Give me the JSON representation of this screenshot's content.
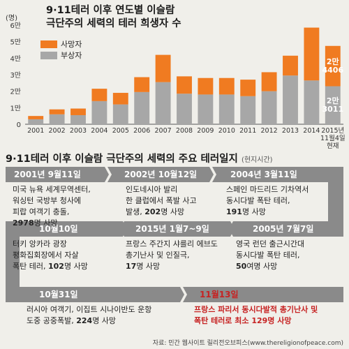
{
  "chart_title_line1": "9·11테러 이후 연도별 이슬람",
  "chart_title_line2": "극단주의 세력의 테러 희생자 수",
  "unit_label": "(명)",
  "legend": {
    "deaths": "사망자",
    "injuries": "부상자"
  },
  "colors": {
    "deaths": "#f07b21",
    "injuries": "#a7a7a7",
    "timeline": "#8a8a8a",
    "highlight": "#c62222"
  },
  "chart_data": {
    "type": "bar",
    "stacked": true,
    "categories": [
      "2001",
      "2002",
      "2003",
      "2004",
      "2005",
      "2006",
      "2007",
      "2008",
      "2009",
      "2010",
      "2011",
      "2012",
      "2013",
      "2014",
      "2015년\n11월4일\n현재"
    ],
    "series": [
      {
        "name": "부상자",
        "values": [
          3000,
          6000,
          5500,
          14000,
          12000,
          19500,
          25500,
          18500,
          18000,
          18000,
          17000,
          20000,
          29500,
          26500,
          23011
        ]
      },
      {
        "name": "사망자",
        "values": [
          2000,
          3000,
          4000,
          7500,
          7000,
          9000,
          16500,
          10500,
          10000,
          10000,
          10000,
          11500,
          12000,
          32000,
          24406
        ]
      }
    ],
    "yticks": [
      "0",
      "1만",
      "2만",
      "3만",
      "4만",
      "5만",
      "6만"
    ],
    "ylim": [
      0,
      60000
    ],
    "annotations": [
      {
        "top": "2만\n4406",
        "bottom": "2만\n3011"
      }
    ]
  },
  "timeline": {
    "title": "9·11테러 이후 이슬람 극단주의 세력의 주요 테러일지",
    "subtitle": "(현지시간)",
    "events": [
      {
        "date": "2001년 9월11일",
        "text": "미국 뉴욕 세계무역센터,\n워싱턴 국방부 청사에\n피랍 여객기 충돌,",
        "num": "2978",
        "tail": "명 사망"
      },
      {
        "date": "2002년 10월12일",
        "text": "인도네시아 발리\n한 클럽에서 폭발 사고\n발생,",
        "num": "202",
        "tail": "명 사망"
      },
      {
        "date": "2004년 3월11일",
        "text": "스페인 마드리드 기차역서\n동시다발 폭탄 테러,",
        "num": "191",
        "tail": "명 사망"
      },
      {
        "date": "10월10일",
        "text": "터키 앙카라 광장\n평화집회장에서 자살\n폭탄 테러,",
        "num": "102",
        "tail": "명 사망"
      },
      {
        "date": "2015년 1월7~9일",
        "text": "프랑스 주간지 샤를리 에브도\n총기난사 및 인질극,",
        "num": "17",
        "tail": "명 사망"
      },
      {
        "date": "2005년 7월7일",
        "text": "영국 런던 출근시간대\n동시다발 폭탄 테러,",
        "num": "50",
        "tail": "여명 사망"
      },
      {
        "date": "10월31일",
        "text": "러시아 여객기, 이집트 시나이반도 운항\n도중 공중폭발,",
        "num": "224",
        "tail": "명 사망"
      },
      {
        "date": "11월13일",
        "text": "프랑스 파리서 동시다발적 총기난사 및\n폭탄 테러로 최소 129명 사망",
        "num": "",
        "tail": ""
      }
    ]
  },
  "source": "자료: 민간 웹사이트 릴리전오브피스(www.thereligionofpeace.com)"
}
